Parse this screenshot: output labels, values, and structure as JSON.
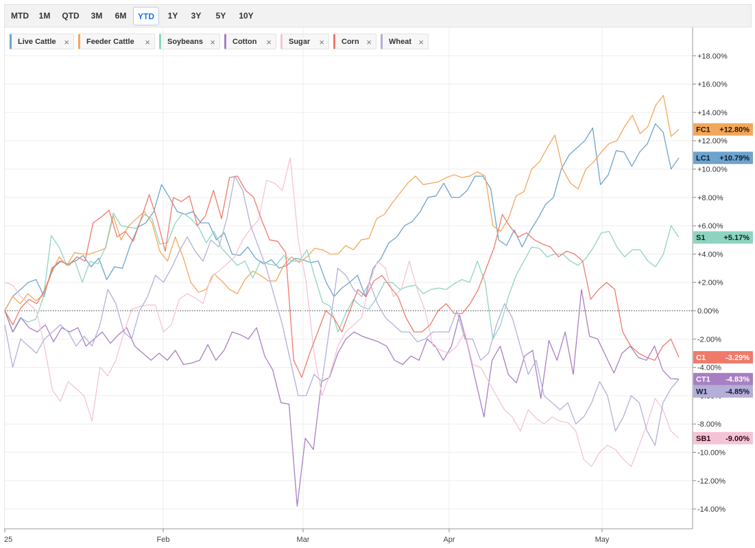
{
  "toolbar": {
    "ranges": [
      "MTD",
      "1M",
      "QTD",
      "3M",
      "6M",
      "YTD",
      "1Y",
      "3Y",
      "5Y",
      "10Y"
    ],
    "active": "YTD"
  },
  "legend_close_glyph": "×",
  "chart_data": {
    "type": "line",
    "x_labels": [
      "25",
      "Feb",
      "Mar",
      "Apr",
      "May"
    ],
    "y_ticks": [
      "+18.00%",
      "+16.00%",
      "+14.00%",
      "+12.00%",
      "+10.00%",
      "+8.00%",
      "+6.00%",
      "+4.00%",
      "+2.00%",
      "0.00%",
      "-2.00%",
      "-4.00%",
      "-6.00%",
      "-8.00%",
      "-10.00%",
      "-12.00%",
      "-14.00%"
    ],
    "ylim": [
      -15,
      20
    ],
    "zero_line": "dotted",
    "grid": true,
    "series": [
      {
        "name": "Live Cattle",
        "symbol": "LC1",
        "last": "+10.79%",
        "color": "#6ea3cc",
        "tag_text_color": "#0b1e33",
        "values": [
          0,
          1,
          1.5,
          2,
          2.2,
          1,
          3,
          3.5,
          3.3,
          3.5,
          3.9,
          3.1,
          3.7,
          2.2,
          3.1,
          3,
          4.6,
          5.9,
          6.2,
          7,
          8.9,
          8,
          7,
          6.8,
          7,
          6.2,
          6.2,
          5,
          5.5,
          4,
          3.9,
          4.5,
          3.7,
          3.3,
          3.6,
          3,
          3.2,
          3.7,
          3.6,
          3.4,
          3.5,
          2,
          1,
          1.6,
          2,
          2.5,
          1,
          3,
          3.7,
          4.8,
          5.2,
          6,
          6.3,
          7,
          8,
          8.1,
          9,
          8,
          8,
          8.5,
          9.5,
          9.5,
          8.6,
          5,
          4.6,
          5.7,
          4.5,
          5.6,
          6.5,
          7.5,
          8,
          10,
          11,
          11.5,
          12,
          12.9,
          8.9,
          9.6,
          11.3,
          11.2,
          10.2,
          11.2,
          11.8,
          13.2,
          12.6,
          10,
          10.79
        ]
      },
      {
        "name": "Feeder Cattle",
        "symbol": "FC1",
        "last": "+12.80%",
        "color": "#f2a75a",
        "tag_text_color": "#2b1600",
        "values": [
          0,
          1,
          0.5,
          1.2,
          0.7,
          1.1,
          2.6,
          3.8,
          3.2,
          4.1,
          4,
          4,
          4.2,
          4.4,
          6.7,
          5,
          6,
          6.5,
          7,
          6.2,
          4.2,
          3.5,
          5.2,
          3.8,
          2,
          1.3,
          1.5,
          2.6,
          2.1,
          1.5,
          1.2,
          2.2,
          2.8,
          2.5,
          2.1,
          2.1,
          3.2,
          3.8,
          3.4,
          3.8,
          4.4,
          4.3,
          4,
          4,
          4.6,
          4.3,
          5,
          5.1,
          6.5,
          6.8,
          7.6,
          8.3,
          9,
          9.5,
          8.9,
          9,
          9.1,
          9.4,
          9.6,
          9.4,
          9.5,
          9.8,
          9.5,
          6,
          5.6,
          6.5,
          8.1,
          8.4,
          10,
          10.5,
          11.5,
          12.4,
          10,
          9,
          8.6,
          10,
          10.5,
          11.2,
          11.8,
          12,
          13,
          13.8,
          12.5,
          13,
          14.5,
          15.2,
          12.3,
          12.8
        ]
      },
      {
        "name": "Soybeans",
        "symbol": "S1",
        "last": "+5.17%",
        "color": "#8ed4c0",
        "tag_text_color": "#06261d",
        "values": [
          0,
          -1.5,
          -0.5,
          -0.8,
          -0.6,
          1,
          5.3,
          4.5,
          3.2,
          3.6,
          2,
          3.5,
          3.3,
          4.5,
          6.9,
          6,
          5.9,
          5.8,
          6.8,
          6.5,
          4.7,
          4.8,
          6.2,
          6.9,
          6.5,
          5.9,
          4.8,
          5.6,
          4.4,
          3.8,
          3.2,
          3.5,
          2.3,
          3.5,
          3.3,
          3.2,
          3.9,
          3.5,
          3.5,
          4.3,
          2.4,
          0.6,
          0.3,
          -1.5,
          -0.2,
          0.8,
          0.3,
          0.1,
          0.9,
          2,
          2,
          1.5,
          1.7,
          1.8,
          1.2,
          1.5,
          1.6,
          1.5,
          1.9,
          2.2,
          2,
          3.5,
          2,
          -2,
          -1,
          1,
          2.5,
          3.5,
          4.5,
          4.4,
          3.8,
          4,
          4,
          3.5,
          3.2,
          3.7,
          4.5,
          5.5,
          5.6,
          4.5,
          3.8,
          4.3,
          4.3,
          3.5,
          3.1,
          4,
          6,
          5.17
        ]
      },
      {
        "name": "Cotton",
        "symbol": "CT1",
        "last": "-4.83%",
        "color": "#a87fc2",
        "tag_text_color": "#ffffff",
        "values": [
          0,
          -1.5,
          -0.5,
          -1.2,
          -1.5,
          -1,
          -2.2,
          -1.2,
          -1.5,
          -1.2,
          -2.5,
          -2,
          -1.5,
          -2.3,
          -1.7,
          -1.2,
          -2.5,
          -3,
          -3.5,
          -3,
          -3.5,
          -2.8,
          -3.8,
          -3.7,
          -3.5,
          -2.4,
          -3.5,
          -2.8,
          -1.5,
          -1.7,
          -2,
          -1.2,
          -3.2,
          -4.2,
          -6.5,
          -6.6,
          -13.8,
          -9,
          -9.8,
          -5,
          -4.7,
          -3,
          -2,
          -1.5,
          -1.8,
          -2,
          -2.2,
          -2.5,
          -3.5,
          -3.8,
          -3.2,
          -3.5,
          -2,
          -2.5,
          -3.5,
          -2.5,
          -0.3,
          -2.5,
          -5,
          -7.5,
          -3.5,
          -2.5,
          -4.5,
          -5.1,
          -3.2,
          -2.8,
          -6.2,
          -2.1,
          -3.5,
          -1.5,
          -4.5,
          1.5,
          -1.8,
          -2,
          -3.2,
          -4.4,
          -3,
          -2.5,
          -3.3,
          -3.5,
          -2.5,
          -4.2,
          -4.8,
          -4.83
        ]
      },
      {
        "name": "Sugar",
        "symbol": "SB1",
        "last": "-9.00%",
        "color": "#f5c3d6",
        "tag_text_color": "#2b0a16",
        "values": [
          2,
          1.8,
          1,
          0.5,
          0,
          -2.5,
          -5.6,
          -6.4,
          -5,
          -5.5,
          -6,
          -7.8,
          -4,
          -4.6,
          -3.5,
          -1.6,
          0.1,
          0.3,
          0.4,
          0.4,
          -1.5,
          -1,
          0.8,
          1.2,
          0.9,
          0.5,
          2.4,
          2.8,
          3.3,
          3.8,
          5,
          5.8,
          6.4,
          9.2,
          9,
          8.5,
          10.8,
          5,
          2,
          -3,
          -6,
          -4.5,
          -2.5,
          -1.5,
          -1,
          -0.5,
          2,
          3.5,
          3,
          1,
          1.5,
          3.5,
          1.5,
          0,
          -2.5,
          -2.8,
          -3,
          -2.5,
          -1.5,
          -3.8,
          -4,
          -5,
          -6,
          -7,
          -7.5,
          -8.5,
          -7,
          -7.6,
          -8,
          -7.5,
          -7.8,
          -7.9,
          -8.5,
          -10.5,
          -11,
          -10,
          -9.5,
          -9.8,
          -10.5,
          -11,
          -9.5,
          -8,
          -6.2,
          -7,
          -8.5,
          -9
        ]
      },
      {
        "name": "Corn",
        "symbol": "C1",
        "last": "-3.29%",
        "color": "#f07a6a",
        "tag_text_color": "#ffffff",
        "values": [
          0,
          -1,
          0.2,
          0.8,
          0.5,
          1.5,
          3,
          3.5,
          3.2,
          3.8,
          3.5,
          6.2,
          6.6,
          7.1,
          5.2,
          5.6,
          4.9,
          6.5,
          8.2,
          6.4,
          4.2,
          8,
          7.7,
          8.1,
          6,
          6.7,
          8.5,
          6.5,
          9.4,
          9.5,
          8.5,
          8,
          6.4,
          5,
          4.9,
          4.1,
          -3.5,
          -4.7,
          -3,
          -1.5,
          0,
          -0.5,
          -1.5,
          0,
          1.5,
          1,
          2.1,
          2.5,
          1.7,
          1,
          -0.5,
          -1.5,
          -1.5,
          -1,
          0,
          0.5,
          -0.2,
          -0.2,
          0.5,
          1.5,
          3,
          4.5,
          6.8,
          5.9,
          5.2,
          5.5,
          5,
          4.7,
          4.5,
          3.8,
          4.2,
          4,
          3.5,
          0.8,
          1.5,
          2,
          1.5,
          -1.5,
          -2.5,
          -3,
          -3.3,
          -3.5,
          -2.5,
          -2,
          -3.29
        ]
      },
      {
        "name": "Wheat",
        "symbol": "W1",
        "last": "-4.85%",
        "color": "#b3afd8",
        "tag_text_color": "#1a1733",
        "values": [
          -1,
          -4,
          -2,
          -2.5,
          -3,
          -2,
          -1.5,
          -1,
          -1.5,
          -2.5,
          -1.8,
          -2.5,
          -1,
          1.5,
          0.5,
          -1.5,
          -2,
          0,
          1,
          2.5,
          2,
          3,
          4.2,
          5.2,
          4.2,
          3.5,
          5,
          4.5,
          6.5,
          9.5,
          8.5,
          6,
          4.5,
          3,
          1,
          -1,
          -3.5,
          -6,
          -6,
          -4.5,
          -5,
          -1,
          3,
          2.5,
          1.5,
          1,
          2,
          0.5,
          -0.5,
          -1,
          -1.5,
          -1.5,
          -2.2,
          -2,
          -1.5,
          -1.5,
          -1.5,
          0,
          -2,
          -2,
          -3.5,
          -3,
          -1,
          0.5,
          -0.5,
          -2.5,
          -4.5,
          -3.5,
          -6,
          -6.5,
          -7,
          -6.5,
          -8,
          -7.5,
          -6.5,
          -5,
          -6,
          -8.5,
          -7.5,
          -6,
          -6.5,
          -8.5,
          -9.5,
          -6.5,
          -5.5,
          -4.85
        ]
      }
    ]
  }
}
